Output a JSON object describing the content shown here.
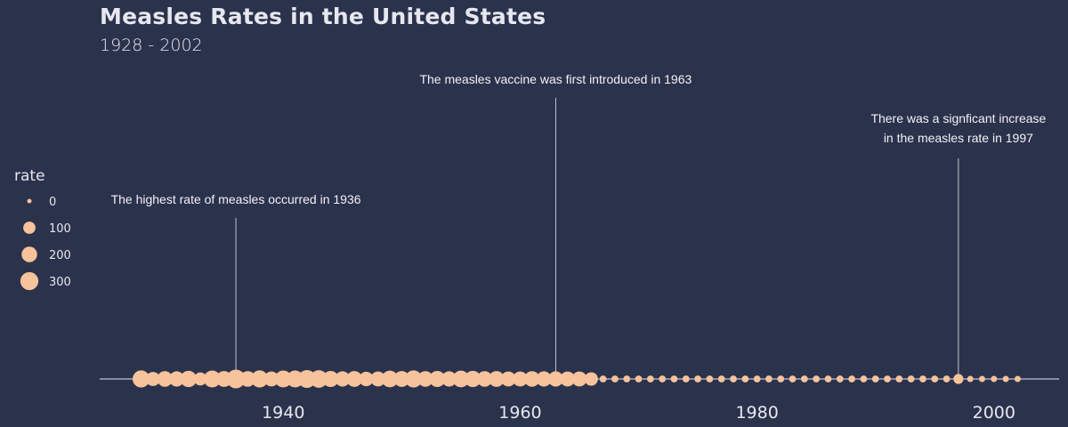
{
  "header": {
    "title": "Measles Rates in the United States",
    "subtitle": "1928 - 2002"
  },
  "colors": {
    "background": "#2b324c",
    "point": "#f7c39c",
    "line": "#e6e7ef",
    "text": "#e6e7ef"
  },
  "chart_data": {
    "type": "scatter",
    "title": "Measles Rates in the United States",
    "subtitle": "1928 - 2002",
    "xlabel": "",
    "ylabel": "",
    "xlim": [
      1924.5,
      2005.5
    ],
    "xticks": [
      1940,
      1960,
      1980,
      2000
    ],
    "legend": {
      "title": "rate",
      "placement": "left",
      "entries": [
        0,
        100,
        200,
        300
      ]
    },
    "series": [
      {
        "x": [
          1928,
          1929,
          1930,
          1931,
          1932,
          1933,
          1934,
          1935,
          1936,
          1937,
          1938,
          1939,
          1940,
          1941,
          1942,
          1943,
          1944,
          1945,
          1946,
          1947,
          1948,
          1949,
          1950,
          1951,
          1952,
          1953,
          1954,
          1955,
          1956,
          1957,
          1958,
          1959,
          1960,
          1961,
          1962,
          1963,
          1964,
          1965,
          1966,
          1967,
          1968,
          1969,
          1970,
          1971,
          1972,
          1973,
          1974,
          1975,
          1976,
          1977,
          1978,
          1979,
          1980,
          1981,
          1982,
          1983,
          1984,
          1985,
          1986,
          1987,
          1988,
          1989,
          1990,
          1991,
          1992,
          1993,
          1994,
          1995,
          1996,
          1997,
          1998,
          1999,
          2000,
          2001,
          2002
        ],
        "rate": [
          260,
          150,
          200,
          190,
          230,
          120,
          250,
          210,
          330,
          200,
          260,
          180,
          250,
          250,
          290,
          280,
          220,
          190,
          210,
          160,
          180,
          240,
          210,
          260,
          200,
          220,
          190,
          240,
          230,
          200,
          210,
          180,
          180,
          200,
          190,
          190,
          180,
          180,
          130,
          10,
          10,
          10,
          10,
          10,
          10,
          10,
          10,
          10,
          10,
          10,
          10,
          10,
          10,
          10,
          10,
          10,
          10,
          10,
          10,
          10,
          10,
          10,
          10,
          10,
          10,
          10,
          10,
          10,
          10,
          50,
          5,
          5,
          5,
          5,
          5
        ]
      }
    ],
    "annotations": [
      {
        "x": 1936,
        "text": [
          "The highest rate of measles occurred in 1936"
        ]
      },
      {
        "x": 1963,
        "text": [
          "The measles vaccine was first introduced in 1963"
        ]
      },
      {
        "x": 1997,
        "text": [
          "There was a signficant increase",
          "in the measles rate in 1997"
        ]
      }
    ]
  }
}
